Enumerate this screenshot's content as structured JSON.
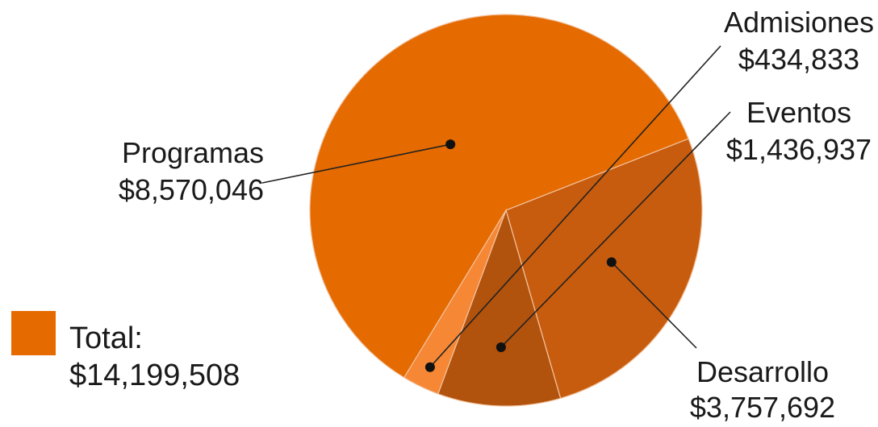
{
  "chart_data": {
    "type": "pie",
    "slices": [
      {
        "label": "Programas",
        "value": 8570046,
        "value_text": "$8,570,046",
        "color": "#E56A00"
      },
      {
        "label": "Desarrollo",
        "value": 3757692,
        "value_text": "$3,757,692",
        "color": "#C85C0E"
      },
      {
        "label": "Eventos",
        "value": 1436937,
        "value_text": "$1,436,937",
        "color": "#B1520D"
      },
      {
        "label": "Admisiones",
        "value": 434833,
        "value_text": "$434,833",
        "color": "#F58735"
      }
    ],
    "total": {
      "label": "Total:",
      "value": 14199508,
      "value_text": "$14,199,508",
      "color": "#E56A00"
    }
  }
}
